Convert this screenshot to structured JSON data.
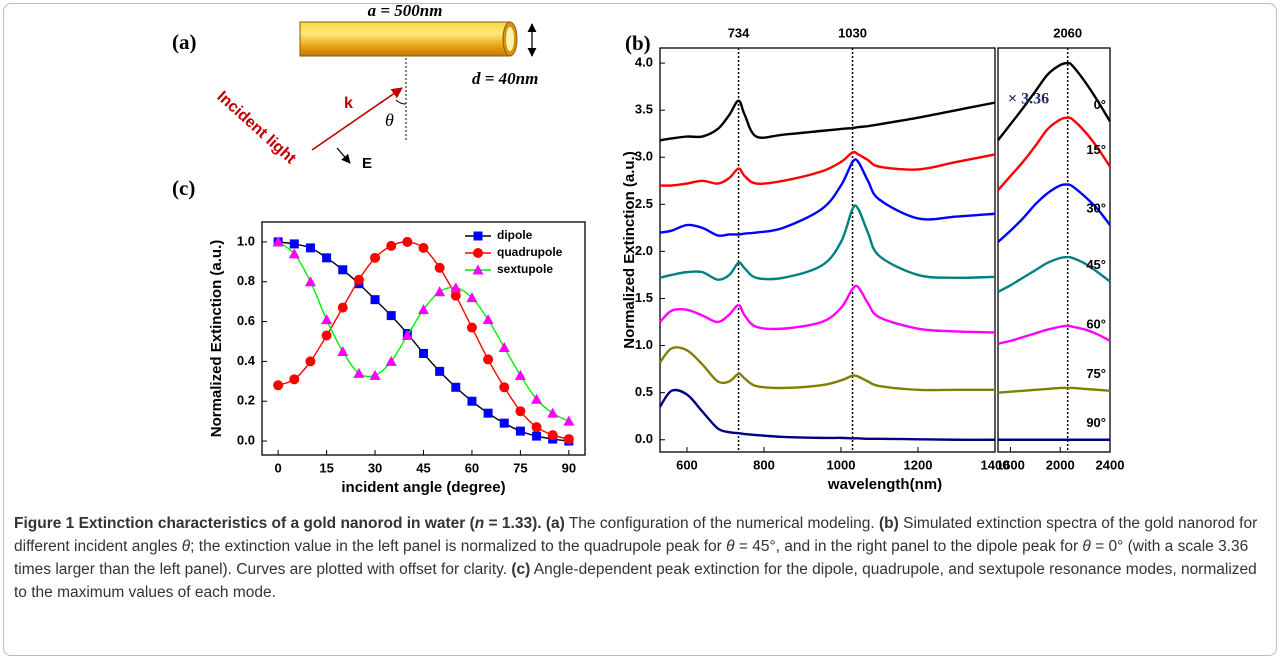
{
  "diagram": {
    "panel": "(a)",
    "length": "a = 500nm",
    "diameter": "d = 40nm",
    "wavevector": "k",
    "angle": "θ",
    "field": "E",
    "light": "Incident light"
  },
  "chart_data": [
    {
      "type": "line",
      "panel": "(b)",
      "ylabel": "Normalized Extinction (a.u.)",
      "xlabel": "wavelength(nm)",
      "x": [
        530,
        560,
        600,
        640,
        680,
        710,
        734,
        750,
        780,
        850,
        950,
        1000,
        1030,
        1045,
        1070,
        1100,
        1200,
        1300,
        1400
      ],
      "xlim": [
        530,
        1400
      ],
      "xticks": [
        600,
        800,
        1000,
        1200,
        1400
      ],
      "ylim": [
        -0.13,
        4.16
      ],
      "yticks": [
        {
          "value": 0,
          "label": "0.0"
        },
        0.5,
        {
          "value": 1,
          "label": "1.0"
        },
        1.5,
        {
          "value": 2,
          "label": "2.0"
        },
        2.5,
        {
          "value": 3,
          "label": "3.0"
        },
        3.5,
        {
          "value": 4,
          "label": "4.0"
        }
      ],
      "vlines": [
        734,
        1030
      ],
      "series": [
        {
          "color": "#000000",
          "values": [
            3.18,
            3.2,
            3.22,
            3.22,
            3.3,
            3.45,
            3.6,
            3.45,
            3.22,
            3.24,
            3.28,
            3.3,
            3.31,
            3.32,
            3.33,
            3.35,
            3.42,
            3.5,
            3.58
          ]
        },
        {
          "color": "#ff0000",
          "values": [
            2.7,
            2.7,
            2.72,
            2.75,
            2.72,
            2.78,
            2.88,
            2.8,
            2.72,
            2.75,
            2.85,
            2.95,
            3.05,
            3.03,
            2.97,
            2.9,
            2.87,
            2.95,
            3.03
          ]
        },
        {
          "color": "#0000ff",
          "values": [
            2.2,
            2.22,
            2.28,
            2.25,
            2.17,
            2.18,
            2.18,
            2.19,
            2.2,
            2.25,
            2.45,
            2.7,
            2.95,
            2.95,
            2.75,
            2.55,
            2.35,
            2.37,
            2.4
          ]
        },
        {
          "color": "#008080",
          "values": [
            1.72,
            1.75,
            1.78,
            1.78,
            1.7,
            1.75,
            1.88,
            1.82,
            1.72,
            1.72,
            1.85,
            2.1,
            2.45,
            2.45,
            2.2,
            1.95,
            1.75,
            1.72,
            1.73
          ]
        },
        {
          "color": "#ff00ff",
          "values": [
            1.25,
            1.37,
            1.38,
            1.32,
            1.25,
            1.33,
            1.43,
            1.32,
            1.2,
            1.18,
            1.25,
            1.4,
            1.6,
            1.62,
            1.45,
            1.3,
            1.18,
            1.15,
            1.14
          ]
        },
        {
          "color": "#808000",
          "values": [
            0.82,
            0.97,
            0.95,
            0.8,
            0.62,
            0.62,
            0.7,
            0.65,
            0.57,
            0.55,
            0.58,
            0.63,
            0.68,
            0.67,
            0.62,
            0.57,
            0.53,
            0.53,
            0.53
          ]
        },
        {
          "color": "#000080",
          "values": [
            0.35,
            0.52,
            0.48,
            0.3,
            0.12,
            0.08,
            0.07,
            0.06,
            0.05,
            0.03,
            0.02,
            0.02,
            0.015,
            0.015,
            0.01,
            0.01,
            0.005,
            0,
            0
          ]
        }
      ]
    },
    {
      "type": "line",
      "annotation": "× 3.36",
      "x": [
        1500,
        1600,
        1700,
        1800,
        1900,
        2000,
        2060,
        2100,
        2200,
        2300,
        2400
      ],
      "xlim": [
        1500,
        2400
      ],
      "xticks": [
        1600,
        2000,
        2400
      ],
      "ylim": [
        -0.13,
        4.16
      ],
      "vlines": [
        2060
      ],
      "series": [
        {
          "name": "0°",
          "color": "#000000",
          "values": [
            3.18,
            3.35,
            3.52,
            3.7,
            3.88,
            3.98,
            4.0,
            3.97,
            3.8,
            3.6,
            3.38
          ]
        },
        {
          "name": "15°",
          "color": "#ff0000",
          "values": [
            2.65,
            2.8,
            2.95,
            3.12,
            3.3,
            3.4,
            3.42,
            3.4,
            3.27,
            3.1,
            2.9
          ]
        },
        {
          "name": "30°",
          "color": "#0000ff",
          "values": [
            2.1,
            2.22,
            2.35,
            2.5,
            2.62,
            2.7,
            2.71,
            2.69,
            2.58,
            2.45,
            2.28
          ]
        },
        {
          "name": "45°",
          "color": "#008080",
          "values": [
            1.57,
            1.64,
            1.72,
            1.8,
            1.88,
            1.93,
            1.94,
            1.93,
            1.87,
            1.78,
            1.68
          ]
        },
        {
          "name": "60°",
          "color": "#ff00ff",
          "values": [
            1.02,
            1.05,
            1.09,
            1.13,
            1.17,
            1.2,
            1.21,
            1.2,
            1.17,
            1.12,
            1.05
          ]
        },
        {
          "name": "75°",
          "color": "#808000",
          "values": [
            0.5,
            0.51,
            0.52,
            0.53,
            0.54,
            0.55,
            0.55,
            0.55,
            0.54,
            0.53,
            0.52
          ]
        },
        {
          "name": "90°",
          "color": "#000080",
          "values": [
            0,
            0,
            0,
            0,
            0,
            0,
            0,
            0,
            0,
            0,
            0
          ]
        }
      ]
    },
    {
      "type": "line",
      "panel": "(c)",
      "ylabel": "Normalized Extinction (a.u.)",
      "xlabel": "incident angle (degree)",
      "legend": "upper right",
      "x": [
        0,
        5,
        10,
        15,
        20,
        25,
        30,
        35,
        40,
        45,
        50,
        55,
        60,
        65,
        70,
        75,
        80,
        85,
        90
      ],
      "xlim": [
        -5,
        95
      ],
      "xticks": [
        0,
        15,
        30,
        45,
        60,
        75,
        90
      ],
      "ylim": [
        -0.07,
        1.1
      ],
      "yticks": [
        {
          "value": 0,
          "label": "0.0"
        },
        0.2,
        0.4,
        0.6,
        0.8,
        {
          "value": 1,
          "label": "1.0"
        }
      ],
      "series": [
        {
          "name": "dipole",
          "color": "#0000ff",
          "line_color": "#000000",
          "marker": "square",
          "values": [
            1.0,
            0.99,
            0.97,
            0.92,
            0.86,
            0.79,
            0.71,
            0.63,
            0.54,
            0.44,
            0.35,
            0.27,
            0.2,
            0.14,
            0.09,
            0.05,
            0.025,
            0.01,
            0
          ]
        },
        {
          "name": "quadrupole",
          "color": "#ff0000",
          "line_color": "#ff0000",
          "marker": "circle",
          "values": [
            0.28,
            0.31,
            0.4,
            0.53,
            0.67,
            0.81,
            0.92,
            0.98,
            1.0,
            0.97,
            0.87,
            0.73,
            0.57,
            0.41,
            0.27,
            0.15,
            0.07,
            0.03,
            0.01
          ]
        },
        {
          "name": "sextupole",
          "color": "#ff00ff",
          "line_color": "#00ee00",
          "marker": "triangle",
          "values": [
            1.0,
            0.94,
            0.8,
            0.61,
            0.45,
            0.34,
            0.33,
            0.4,
            0.53,
            0.66,
            0.75,
            0.77,
            0.72,
            0.61,
            0.47,
            0.33,
            0.21,
            0.14,
            0.1
          ]
        }
      ]
    }
  ],
  "caption": {
    "runs": [
      "Figure 1 Extinction characteristics of a gold nanorod in water (",
      "n",
      " = 1.33).",
      " (a)",
      " The configuration of the numerical modeling. ",
      "(b)",
      " Simulated extinction spectra of the gold nanorod for different incident angles ",
      "θ",
      "; the extinction value in the left panel is normalized to the quadrupole peak for ",
      "θ",
      " = 45°, and in the right panel to the dipole peak for ",
      "θ",
      " = 0° (with a scale 3.36 times larger than the left panel). Curves are plotted with offset for clarity. ",
      "(c)",
      " Angle-dependent peak extinction for the dipole, quadrupole, and sextupole resonance modes, normalized to the maximum values of each mode."
    ]
  }
}
